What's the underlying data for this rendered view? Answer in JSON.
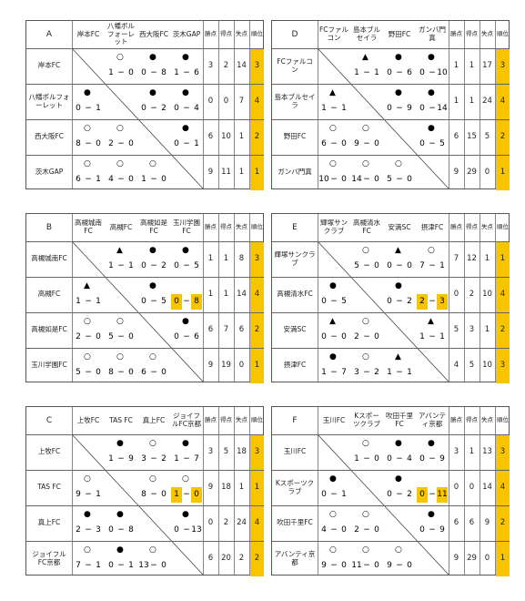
{
  "score_separator": "−",
  "stat_headers": [
    "勝点",
    "得点",
    "失点",
    "順位"
  ],
  "groups": [
    {
      "label": "A",
      "teams": [
        "岸本FC",
        "八幡ボルフォーレット",
        "西大阪FC",
        "茨木GAP"
      ],
      "rows": [
        {
          "results": [
            null,
            {
              "mark": "○",
              "for": 1,
              "against": 0
            },
            {
              "mark": "●",
              "for": 0,
              "against": 8
            },
            {
              "mark": "●",
              "for": 1,
              "against": 6
            }
          ],
          "points": 3,
          "goals_for": 2,
          "goals_against": 14,
          "rank": 3
        },
        {
          "results": [
            {
              "mark": "●",
              "for": 0,
              "against": 1
            },
            null,
            {
              "mark": "●",
              "for": 0,
              "against": 2
            },
            {
              "mark": "●",
              "for": 0,
              "against": 4
            }
          ],
          "points": 0,
          "goals_for": 0,
          "goals_against": 7,
          "rank": 4
        },
        {
          "results": [
            {
              "mark": "○",
              "for": 8,
              "against": 0
            },
            {
              "mark": "○",
              "for": 2,
              "against": 0
            },
            null,
            {
              "mark": "●",
              "for": 0,
              "against": 1
            }
          ],
          "points": 6,
          "goals_for": 10,
          "goals_against": 1,
          "rank": 2
        },
        {
          "results": [
            {
              "mark": "○",
              "for": 6,
              "against": 1
            },
            {
              "mark": "○",
              "for": 4,
              "against": 0
            },
            {
              "mark": "○",
              "for": 1,
              "against": 0
            },
            null
          ],
          "points": 9,
          "goals_for": 11,
          "goals_against": 1,
          "rank": 1
        }
      ]
    },
    {
      "label": "B",
      "teams": [
        "高槻城南FC",
        "高槻FC",
        "高槻如是FC",
        "玉川学園FC"
      ],
      "rows": [
        {
          "results": [
            null,
            {
              "mark": "▲",
              "for": 1,
              "against": 1
            },
            {
              "mark": "●",
              "for": 0,
              "against": 2
            },
            {
              "mark": "●",
              "for": 0,
              "against": 5
            }
          ],
          "points": 1,
          "goals_for": 1,
          "goals_against": 8,
          "rank": 3
        },
        {
          "results": [
            {
              "mark": "▲",
              "for": 1,
              "against": 1
            },
            null,
            {
              "mark": "●",
              "for": 0,
              "against": 5
            },
            {
              "for": 0,
              "against": 8,
              "highlight": true
            }
          ],
          "points": 1,
          "goals_for": 1,
          "goals_against": 14,
          "rank": 4
        },
        {
          "results": [
            {
              "mark": "○",
              "for": 2,
              "against": 0
            },
            {
              "mark": "○",
              "for": 5,
              "against": 0
            },
            null,
            {
              "mark": "●",
              "for": 0,
              "against": 6
            }
          ],
          "points": 6,
          "goals_for": 7,
          "goals_against": 6,
          "rank": 2
        },
        {
          "results": [
            {
              "mark": "○",
              "for": 5,
              "against": 0
            },
            {
              "mark": "○",
              "for": 8,
              "against": 0
            },
            {
              "mark": "○",
              "for": 6,
              "against": 0
            },
            null
          ],
          "points": 9,
          "goals_for": 19,
          "goals_against": 0,
          "rank": 1
        }
      ]
    },
    {
      "label": "C",
      "teams": [
        "上牧FC",
        "TAS FC",
        "真上FC",
        "ジョイフルFC京都"
      ],
      "rows": [
        {
          "results": [
            null,
            {
              "mark": "●",
              "for": 1,
              "against": 9
            },
            {
              "mark": "○",
              "for": 3,
              "against": 2
            },
            {
              "mark": "●",
              "for": 1,
              "against": 7
            }
          ],
          "points": 3,
          "goals_for": 5,
          "goals_against": 18,
          "rank": 3
        },
        {
          "results": [
            {
              "mark": "○",
              "for": 9,
              "against": 1
            },
            null,
            {
              "mark": "○",
              "for": 8,
              "against": 0
            },
            {
              "mark": "○",
              "for": 1,
              "against": 0,
              "highlight": true
            }
          ],
          "points": 9,
          "goals_for": 18,
          "goals_against": 1,
          "rank": 1
        },
        {
          "results": [
            {
              "mark": "●",
              "for": 2,
              "against": 3
            },
            {
              "mark": "●",
              "for": 0,
              "against": 8
            },
            null,
            {
              "mark": "●",
              "for": 0,
              "against": 13
            }
          ],
          "points": 0,
          "goals_for": 2,
          "goals_against": 24,
          "rank": 4
        },
        {
          "results": [
            {
              "mark": "○",
              "for": 7,
              "against": 1
            },
            {
              "mark": "●",
              "for": 0,
              "against": 1
            },
            {
              "mark": "○",
              "for": 13,
              "against": 0
            },
            null
          ],
          "points": 6,
          "goals_for": 20,
          "goals_against": 2,
          "rank": 2
        }
      ]
    },
    {
      "label": "D",
      "teams": [
        "FCファルコン",
        "島本ブルセイラ",
        "野田FC",
        "ガンバ門真"
      ],
      "rows": [
        {
          "results": [
            null,
            {
              "mark": "▲",
              "for": 1,
              "against": 1
            },
            {
              "mark": "●",
              "for": 0,
              "against": 6
            },
            {
              "mark": "●",
              "for": 0,
              "against": 10
            }
          ],
          "points": 1,
          "goals_for": 1,
          "goals_against": 17,
          "rank": 3
        },
        {
          "results": [
            {
              "mark": "▲",
              "for": 1,
              "against": 1
            },
            null,
            {
              "mark": "●",
              "for": 0,
              "against": 9
            },
            {
              "mark": "●",
              "for": 0,
              "against": 14
            }
          ],
          "points": 1,
          "goals_for": 1,
          "goals_against": 24,
          "rank": 4
        },
        {
          "results": [
            {
              "mark": "○",
              "for": 6,
              "against": 0
            },
            {
              "mark": "○",
              "for": 9,
              "against": 0
            },
            null,
            {
              "mark": "●",
              "for": 0,
              "against": 5
            }
          ],
          "points": 6,
          "goals_for": 15,
          "goals_against": 5,
          "rank": 2
        },
        {
          "results": [
            {
              "mark": "○",
              "for": 10,
              "against": 0
            },
            {
              "mark": "○",
              "for": 14,
              "against": 0
            },
            {
              "mark": "○",
              "for": 5,
              "against": 0
            },
            null
          ],
          "points": 9,
          "goals_for": 29,
          "goals_against": 0,
          "rank": 1
        }
      ]
    },
    {
      "label": "E",
      "teams": [
        "輝塚サンクラブ",
        "高槻清水FC",
        "安満SC",
        "摂津FC"
      ],
      "rows": [
        {
          "results": [
            null,
            {
              "mark": "○",
              "for": 5,
              "against": 0
            },
            {
              "mark": "▲",
              "for": 0,
              "against": 0
            },
            {
              "mark": "○",
              "for": 7,
              "against": 1
            }
          ],
          "points": 7,
          "goals_for": 12,
          "goals_against": 1,
          "rank": 1
        },
        {
          "results": [
            {
              "mark": "●",
              "for": 0,
              "against": 5
            },
            null,
            {
              "mark": "●",
              "for": 0,
              "against": 2
            },
            {
              "for": 2,
              "against": 3,
              "highlight": true
            }
          ],
          "points": 0,
          "goals_for": 2,
          "goals_against": 10,
          "rank": 4
        },
        {
          "results": [
            {
              "mark": "▲",
              "for": 0,
              "against": 0
            },
            {
              "mark": "○",
              "for": 2,
              "against": 0
            },
            null,
            {
              "mark": "▲",
              "for": 1,
              "against": 1
            }
          ],
          "points": 5,
          "goals_for": 3,
          "goals_against": 1,
          "rank": 2
        },
        {
          "results": [
            {
              "mark": "●",
              "for": 1,
              "against": 7
            },
            {
              "mark": "○",
              "for": 3,
              "against": 2
            },
            {
              "mark": "▲",
              "for": 1,
              "against": 1
            },
            null
          ],
          "points": 4,
          "goals_for": 5,
          "goals_against": 10,
          "rank": 3
        }
      ]
    },
    {
      "label": "F",
      "teams": [
        "玉川FC",
        "Kスポーツクラブ",
        "吹田千里FC",
        "アバンティ京都"
      ],
      "rows": [
        {
          "results": [
            null,
            {
              "mark": "○",
              "for": 1,
              "against": 0
            },
            {
              "mark": "●",
              "for": 0,
              "against": 4
            },
            {
              "mark": "●",
              "for": 0,
              "against": 9
            }
          ],
          "points": 3,
          "goals_for": 1,
          "goals_against": 13,
          "rank": 3
        },
        {
          "results": [
            {
              "mark": "●",
              "for": 0,
              "against": 1
            },
            null,
            {
              "mark": "●",
              "for": 0,
              "against": 2
            },
            {
              "for": 0,
              "against": 11,
              "highlight": true
            }
          ],
          "points": 0,
          "goals_for": 0,
          "goals_against": 14,
          "rank": 4
        },
        {
          "results": [
            {
              "mark": "○",
              "for": 4,
              "against": 0
            },
            {
              "mark": "○",
              "for": 2,
              "against": 0
            },
            null,
            {
              "mark": "●",
              "for": 0,
              "against": 9
            }
          ],
          "points": 6,
          "goals_for": 6,
          "goals_against": 9,
          "rank": 2
        },
        {
          "results": [
            {
              "mark": "○",
              "for": 9,
              "against": 0
            },
            {
              "mark": "○",
              "for": 11,
              "against": 0
            },
            {
              "mark": "○",
              "for": 9,
              "against": 0
            },
            null
          ],
          "points": 9,
          "goals_for": 29,
          "goals_against": 0,
          "rank": 1
        }
      ]
    }
  ]
}
